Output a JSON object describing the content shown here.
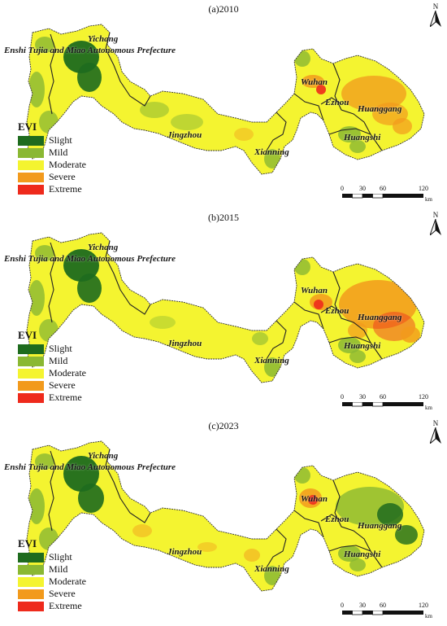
{
  "panels": [
    {
      "title": "(a)2010"
    },
    {
      "title": "(b)2015"
    },
    {
      "title": "(c)2023"
    }
  ],
  "places": {
    "yichang": "Yichang",
    "enshi": "Enshi Tujia and Miao Autonomous Prefecture",
    "jingzhou": "Jingzhou",
    "xianning": "Xianning",
    "wuhan": "Wuhan",
    "ezhou": "Ezhou",
    "huanggang": "Huanggang",
    "huangshi": "Huangshi"
  },
  "legend": {
    "title": "EVI",
    "items": [
      {
        "label": "Slight",
        "color": "#1e6b1e"
      },
      {
        "label": "Mild",
        "color": "#8ab833"
      },
      {
        "label": "Moderate",
        "color": "#f4f430"
      },
      {
        "label": "Severe",
        "color": "#f29a1c"
      },
      {
        "label": "Extreme",
        "color": "#ee2a1c"
      }
    ]
  },
  "north": {
    "label": "N"
  },
  "scale": {
    "ticks": [
      "0",
      "30",
      "60",
      "120"
    ],
    "unit": "km"
  }
}
